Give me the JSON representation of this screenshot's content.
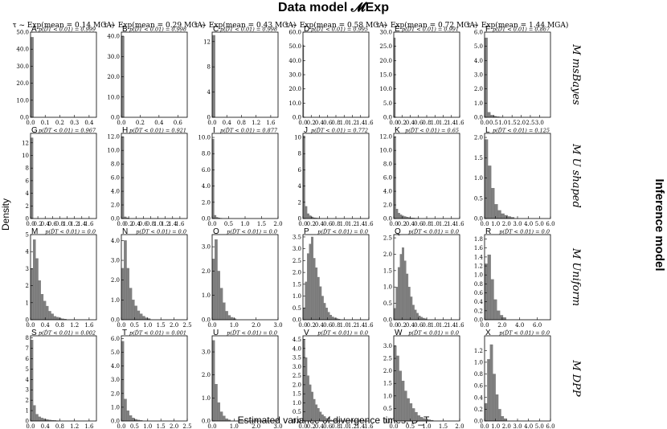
{
  "figure": {
    "title": "Data model 𝓜Exp",
    "right_label": "Inference model",
    "ylabel": "Density",
    "xlabel": "Estimated variance of divergence times, D_T"
  },
  "columns": [
    "τ ~ Exp(mean = 0.14 MGA)",
    "τ ~ Exp(mean = 0.29 MGA)",
    "τ ~ Exp(mean = 0.43 MGA)",
    "τ ~ Exp(mean = 0.58 MGA)",
    "τ ~ Exp(mean = 0.72 MGA)",
    "τ ~ Exp(mean = 1.44 MGA)"
  ],
  "rows": [
    "M msBayes",
    "M U shaped",
    "M Uniform",
    "M DPP"
  ],
  "colors": {
    "bar": "#808080",
    "bar_edge": "#6a6a6a",
    "axis": "#000000"
  },
  "chart_data": [
    {
      "type": "bar",
      "panel": "A",
      "annotation": "p(D̂T < 0.01) = 0.999",
      "xlim": [
        0,
        0.45
      ],
      "ylim": [
        0,
        50
      ],
      "xticks": [
        "0.0",
        "0.1",
        "0.2",
        "0.3",
        "0.4"
      ],
      "yticks": [
        "0.0",
        "10.0",
        "20.0",
        "30.0",
        "40.0",
        "50.0"
      ],
      "bin_width": 0.02,
      "values": [
        47
      ]
    },
    {
      "type": "bar",
      "panel": "B",
      "annotation": "p(D̂T < 0.01) = 0.998",
      "xlim": [
        0,
        0.7
      ],
      "ylim": [
        0,
        42
      ],
      "xticks": [
        "0.0",
        "0.2",
        "0.4",
        "0.6"
      ],
      "yticks": [
        "0.0",
        "10.0",
        "20.0",
        "30.0",
        "40.0"
      ],
      "bin_width": 0.03,
      "values": [
        40
      ]
    },
    {
      "type": "bar",
      "panel": "C",
      "annotation": "p(D̂T < 0.01) = 0.998",
      "xlim": [
        0,
        1.8
      ],
      "ylim": [
        0,
        13.5
      ],
      "xticks": [
        "0.0",
        "0.4",
        "0.8",
        "1.2",
        "1.6"
      ],
      "yticks": [
        "0",
        "4",
        "8",
        "12"
      ],
      "bin_width": 0.08,
      "values": [
        13
      ]
    },
    {
      "type": "bar",
      "panel": "D",
      "annotation": "p(D̂T < 0.01) = 0.995",
      "xlim": [
        0,
        1.6
      ],
      "ylim": [
        0,
        60
      ],
      "xticks": [
        "0.0",
        "0.2",
        "0.4",
        "0.6",
        "0.8",
        "1.0",
        "1.2",
        "1.4",
        "1.6"
      ],
      "yticks": [
        "0.0",
        "10.0",
        "20.0",
        "30.0",
        "40.0",
        "50.0",
        "60.0"
      ],
      "bin_width": 0.02,
      "values": [
        51
      ]
    },
    {
      "type": "bar",
      "panel": "E",
      "annotation": "p(D̂T < 0.01) = 0.991",
      "xlim": [
        0,
        1.6
      ],
      "ylim": [
        0,
        30
      ],
      "xticks": [
        "0.0",
        "0.2",
        "0.4",
        "0.6",
        "0.8",
        "1.0",
        "1.2",
        "1.4",
        "1.6"
      ],
      "yticks": [
        "0.0",
        "5.0",
        "10.0",
        "15.0",
        "20.0",
        "25.0",
        "30.0"
      ],
      "bin_width": 0.04,
      "values": [
        28
      ]
    },
    {
      "type": "bar",
      "panel": "F",
      "annotation": "p(D̂T < 0.01) = 0.867",
      "xlim": [
        0,
        3.6
      ],
      "ylim": [
        0,
        6
      ],
      "xticks": [
        "0.0",
        "0.5",
        "1.0",
        "1.5",
        "2.0",
        "2.5",
        "3.0"
      ],
      "yticks": [
        "0.0",
        "1.0",
        "2.0",
        "3.0",
        "4.0",
        "5.0",
        "6.0"
      ],
      "bin_width": 0.16,
      "values": [
        5.6,
        0.35,
        0.15,
        0.08,
        0.04,
        0.02
      ]
    },
    {
      "type": "bar",
      "panel": "G",
      "annotation": "p(D̂T < 0.01) = 0.967",
      "xlim": [
        0,
        1.8
      ],
      "ylim": [
        0,
        13.5
      ],
      "xticks": [
        "0.0",
        "0.2",
        "0.4",
        "0.6",
        "0.8",
        "1.0",
        "1.2",
        "1.4",
        "1.6"
      ],
      "yticks": [
        "0",
        "2",
        "4",
        "6",
        "8",
        "10",
        "12"
      ],
      "bin_width": 0.07,
      "values": [
        12.8
      ]
    },
    {
      "type": "bar",
      "panel": "H",
      "annotation": "p(D̂T < 0.01) = 0.921",
      "xlim": [
        0,
        1.8
      ],
      "ylim": [
        0,
        12.5
      ],
      "xticks": [
        "0.0",
        "0.2",
        "0.4",
        "0.6",
        "0.8",
        "1.0",
        "1.2",
        "1.4",
        "1.6"
      ],
      "yticks": [
        "0.0",
        "2.0",
        "4.0",
        "6.0",
        "8.0",
        "10.0",
        "12.0"
      ],
      "bin_width": 0.07,
      "values": [
        12,
        0.25,
        0.1
      ]
    },
    {
      "type": "bar",
      "panel": "I",
      "annotation": "p(D̂T < 0.01) = 0.877",
      "xlim": [
        0,
        2.0
      ],
      "ylim": [
        0,
        10.5
      ],
      "xticks": [
        "0.0",
        "0.5",
        "1.0",
        "1.5",
        "2.0"
      ],
      "yticks": [
        "0.0",
        "2.0",
        "4.0",
        "6.0",
        "8.0",
        "10.0"
      ],
      "bin_width": 0.06,
      "values": [
        9.8,
        0.4,
        0.15,
        0.08,
        0.04
      ]
    },
    {
      "type": "bar",
      "panel": "J",
      "annotation": "p(D̂T < 0.01) = 0.772",
      "xlim": [
        0,
        1.6
      ],
      "ylim": [
        0,
        10.5
      ],
      "xticks": [
        "0.0",
        "0.2",
        "0.4",
        "0.6",
        "0.8",
        "1.0",
        "1.2",
        "1.4",
        "1.6"
      ],
      "yticks": [
        "0",
        "2",
        "4",
        "6",
        "8",
        "10"
      ],
      "bin_width": 0.05,
      "values": [
        10.2,
        1.5,
        0.6,
        0.35,
        0.2,
        0.1,
        0.06,
        0.04
      ]
    },
    {
      "type": "bar",
      "panel": "K",
      "annotation": "p(D̂T < 0.01) = 0.65",
      "xlim": [
        0,
        1.6
      ],
      "ylim": [
        0,
        12.5
      ],
      "xticks": [
        "0.0",
        "0.2",
        "0.4",
        "0.6",
        "0.8",
        "1.0",
        "1.2",
        "1.4",
        "1.6"
      ],
      "yticks": [
        "0.0",
        "2.0",
        "4.0",
        "6.0",
        "8.0",
        "10.0",
        "12.0"
      ],
      "bin_width": 0.05,
      "values": [
        12,
        1.4,
        0.8,
        0.55,
        0.4,
        0.3,
        0.22,
        0.15,
        0.1,
        0.08,
        0.05,
        0.04
      ]
    },
    {
      "type": "bar",
      "panel": "L",
      "annotation": "p(D̂T < 0.01) = 0.125",
      "xlim": [
        0,
        6.0
      ],
      "ylim": [
        0,
        2.1
      ],
      "xticks": [
        "0.0",
        "1.0",
        "2.0",
        "3.0",
        "4.0",
        "5.0",
        "6.0"
      ],
      "yticks": [
        "0.0",
        "0.5",
        "1.0",
        "1.5",
        "2.0"
      ],
      "bin_width": 0.3,
      "values": [
        1.95,
        1.3,
        0.75,
        0.35,
        0.2,
        0.12,
        0.08,
        0.05,
        0.03
      ]
    },
    {
      "type": "bar",
      "panel": "M",
      "annotation": "p(D̂T < 0.01) = 0.0",
      "xlim": [
        0,
        1.8
      ],
      "ylim": [
        0,
        5
      ],
      "xticks": [
        "0.0",
        "0.4",
        "0.8",
        "1.2",
        "1.6"
      ],
      "yticks": [
        "0",
        "1",
        "2",
        "3",
        "4",
        "5"
      ],
      "bin_width": 0.07,
      "values": [
        3.0,
        4.7,
        3.6,
        2.3,
        1.5,
        1.1,
        0.8,
        0.5,
        0.35,
        0.2,
        0.15,
        0.1,
        0.06,
        0.04
      ]
    },
    {
      "type": "bar",
      "panel": "N",
      "annotation": "p(D̂T < 0.01) = 0.0",
      "xlim": [
        0,
        2.5
      ],
      "ylim": [
        0,
        4.3
      ],
      "xticks": [
        "0.0",
        "0.5",
        "1.0",
        "1.5",
        "2.0",
        "2.5"
      ],
      "yticks": [
        "0.0",
        "1.0",
        "2.0",
        "3.0",
        "4.0"
      ],
      "bin_width": 0.1,
      "values": [
        2.6,
        4.0,
        2.6,
        1.6,
        1.0,
        0.7,
        0.45,
        0.3,
        0.18,
        0.1,
        0.06
      ]
    },
    {
      "type": "bar",
      "panel": "O",
      "annotation": "p(D̂T < 0.01) = 0.0",
      "xlim": [
        0,
        3.0
      ],
      "ylim": [
        0,
        3.5
      ],
      "xticks": [
        "0.0",
        "1.0",
        "2.0",
        "3.0"
      ],
      "yticks": [
        "0.0",
        "1.0",
        "2.0",
        "3.0"
      ],
      "bin_width": 0.12,
      "values": [
        2.5,
        3.3,
        2.0,
        1.3,
        0.7,
        0.35,
        0.18,
        0.1,
        0.05
      ]
    },
    {
      "type": "bar",
      "panel": "P",
      "annotation": "p(D̂T < 0.01) = 0.0",
      "xlim": [
        0,
        1.6
      ],
      "ylim": [
        0,
        3.6
      ],
      "xticks": [
        "0.0",
        "0.2",
        "0.4",
        "0.6",
        "0.8",
        "1.0",
        "1.2",
        "1.4",
        "1.6"
      ],
      "yticks": [
        "0.0",
        "0.5",
        "1.0",
        "1.5",
        "2.0",
        "2.5",
        "3.0",
        "3.5"
      ],
      "bin_width": 0.05,
      "values": [
        0.5,
        1.6,
        2.8,
        3.2,
        3.5,
        2.6,
        2.2,
        1.8,
        1.4,
        1.0,
        0.7,
        0.5,
        0.32,
        0.2,
        0.12,
        0.08,
        0.05,
        0.03
      ]
    },
    {
      "type": "bar",
      "panel": "Q",
      "annotation": "p(D̂T < 0.01) = 0.0",
      "xlim": [
        0,
        1.6
      ],
      "ylim": [
        0,
        2.6
      ],
      "xticks": [
        "0.0",
        "0.2",
        "0.4",
        "0.6",
        "0.8",
        "1.0",
        "1.2",
        "1.4",
        "1.6"
      ],
      "yticks": [
        "0.0",
        "0.5",
        "1.0",
        "1.5",
        "2.0",
        "2.5"
      ],
      "bin_width": 0.05,
      "values": [
        0.35,
        1.0,
        1.6,
        2.0,
        2.2,
        1.8,
        1.4,
        1.0,
        0.7,
        0.45,
        0.3,
        0.2,
        0.12,
        0.08,
        0.05,
        0.03
      ]
    },
    {
      "type": "bar",
      "panel": "R",
      "annotation": "p(D̂T < 0.01) = 0.0",
      "xlim": [
        0,
        7.5
      ],
      "ylim": [
        0,
        1.9
      ],
      "xticks": [
        "0.0",
        "2.0",
        "4.0",
        "6.0"
      ],
      "yticks": [
        "0.0",
        "0.2",
        "0.4",
        "0.6",
        "0.8",
        "1.0",
        "1.2",
        "1.4",
        "1.6",
        "1.8"
      ],
      "bin_width": 0.35,
      "values": [
        1.25,
        1.45,
        0.9,
        0.45,
        0.2,
        0.1,
        0.05
      ]
    },
    {
      "type": "bar",
      "panel": "S",
      "annotation": "p(D̂T < 0.01) = 0.002",
      "xlim": [
        0,
        1.8
      ],
      "ylim": [
        0,
        8.2
      ],
      "xticks": [
        "0.0",
        "0.4",
        "0.8",
        "1.2",
        "1.6"
      ],
      "yticks": [
        "0",
        "1",
        "2",
        "3",
        "4",
        "5",
        "6",
        "7",
        "8"
      ],
      "bin_width": 0.07,
      "values": [
        7.8,
        1.5,
        0.65,
        0.4,
        0.28,
        0.2,
        0.15,
        0.1,
        0.07,
        0.05,
        0.03
      ]
    },
    {
      "type": "bar",
      "panel": "T",
      "annotation": "p(D̂T < 0.01) = 0.001",
      "xlim": [
        0,
        2.5
      ],
      "ylim": [
        0,
        6.2
      ],
      "xticks": [
        "0.0",
        "0.5",
        "1.0",
        "1.5",
        "2.0",
        "2.5"
      ],
      "yticks": [
        "0.0",
        "1.0",
        "2.0",
        "3.0",
        "4.0",
        "5.0",
        "6.0"
      ],
      "bin_width": 0.1,
      "values": [
        5.8,
        1.6,
        0.75,
        0.4,
        0.22,
        0.12,
        0.07,
        0.04
      ]
    },
    {
      "type": "bar",
      "panel": "U",
      "annotation": "p(D̂T < 0.01) = 0.0",
      "xlim": [
        0,
        3.0
      ],
      "ylim": [
        0,
        3.7
      ],
      "xticks": [
        "0.0",
        "1.0",
        "2.0",
        "3.0"
      ],
      "yticks": [
        "0.0",
        "1.0",
        "2.0",
        "3.0"
      ],
      "bin_width": 0.12,
      "values": [
        3.5,
        1.6,
        0.8,
        0.4,
        0.22,
        0.1,
        0.05
      ]
    },
    {
      "type": "bar",
      "panel": "V",
      "annotation": "p(D̂T < 0.01) = 0.0",
      "xlim": [
        0,
        1.6
      ],
      "ylim": [
        0,
        4.7
      ],
      "xticks": [
        "0.0",
        "0.2",
        "0.4",
        "0.6",
        "0.8",
        "1.0",
        "1.2",
        "1.4",
        "1.6"
      ],
      "yticks": [
        "0.0",
        "0.5",
        "1.0",
        "1.5",
        "2.0",
        "2.5",
        "3.0",
        "3.5",
        "4.0",
        "4.5"
      ],
      "bin_width": 0.05,
      "values": [
        4.5,
        3.5,
        2.5,
        2.0,
        1.6,
        1.2,
        0.9,
        0.7,
        0.5,
        0.35,
        0.25,
        0.15,
        0.1,
        0.06,
        0.04
      ]
    },
    {
      "type": "bar",
      "panel": "W",
      "annotation": "p(D̂T < 0.01) = 0.0",
      "xlim": [
        0,
        2.0
      ],
      "ylim": [
        0,
        3.4
      ],
      "xticks": [
        "0.0",
        "0.5",
        "1.0",
        "1.5",
        "2.0"
      ],
      "yticks": [
        "0.0",
        "0.5",
        "1.0",
        "1.5",
        "2.0",
        "2.5",
        "3.0"
      ],
      "bin_width": 0.08,
      "values": [
        3.0,
        2.6,
        2.0,
        1.6,
        1.2,
        0.9,
        0.7,
        0.5,
        0.35,
        0.22,
        0.15,
        0.1,
        0.07,
        0.05,
        0.03
      ]
    },
    {
      "type": "bar",
      "panel": "X",
      "annotation": "p(D̂T < 0.01) = 0.0",
      "xlim": [
        0,
        6.0
      ],
      "ylim": [
        0,
        1.45
      ],
      "xticks": [
        "0.0",
        "1.0",
        "2.0",
        "3.0",
        "4.0",
        "5.0",
        "6.0"
      ],
      "yticks": [
        "0.0",
        "0.2",
        "0.4",
        "0.6",
        "0.8",
        "1.0",
        "1.2"
      ],
      "bin_width": 0.25,
      "values": [
        0.3,
        1.05,
        1.3,
        0.8,
        0.45,
        0.2,
        0.08,
        0.04
      ]
    }
  ]
}
